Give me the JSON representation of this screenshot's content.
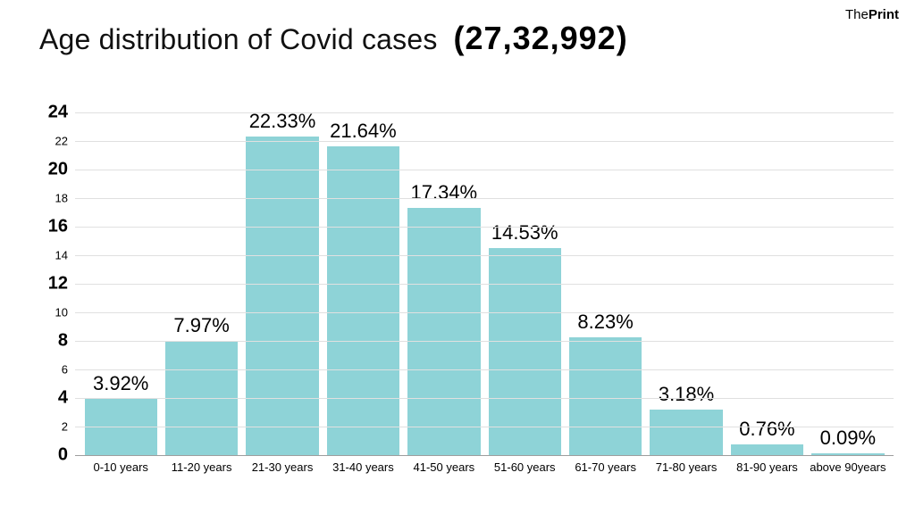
{
  "brand": {
    "prefix": "The",
    "suffix": "Print"
  },
  "title": "Age distribution of Covid cases",
  "total": "(27,32,992)",
  "chart": {
    "type": "bar",
    "categories": [
      "0-10 years",
      "11-20 years",
      "21-30 years",
      "31-40 years",
      "41-50 years",
      "51-60 years",
      "61-70 years",
      "71-80 years",
      "81-90 years",
      "above 90years"
    ],
    "values": [
      3.92,
      7.97,
      22.33,
      21.64,
      17.34,
      14.53,
      8.23,
      3.18,
      0.76,
      0.09
    ],
    "value_labels": [
      "3.92%",
      "7.97%",
      "22.33%",
      "21.64%",
      "17.34%",
      "14.53%",
      "8.23%",
      "3.18%",
      "0.76%",
      "0.09%"
    ],
    "bar_color": "#8ed3d7",
    "background_color": "#ffffff",
    "grid_color": "#e0e0e0",
    "baseline_color": "#9e9e9e",
    "ylim": [
      0,
      25
    ],
    "yticks_major": [
      0,
      4,
      8,
      12,
      16,
      20,
      24
    ],
    "yticks_minor": [
      2,
      6,
      10,
      14,
      18,
      22
    ],
    "bar_width": 0.9,
    "title_fontsize": 32,
    "total_fontsize": 36,
    "value_label_fontsize": 22,
    "xlabel_fontsize": 13,
    "ymajor_fontsize": 20,
    "yminor_fontsize": 13
  }
}
